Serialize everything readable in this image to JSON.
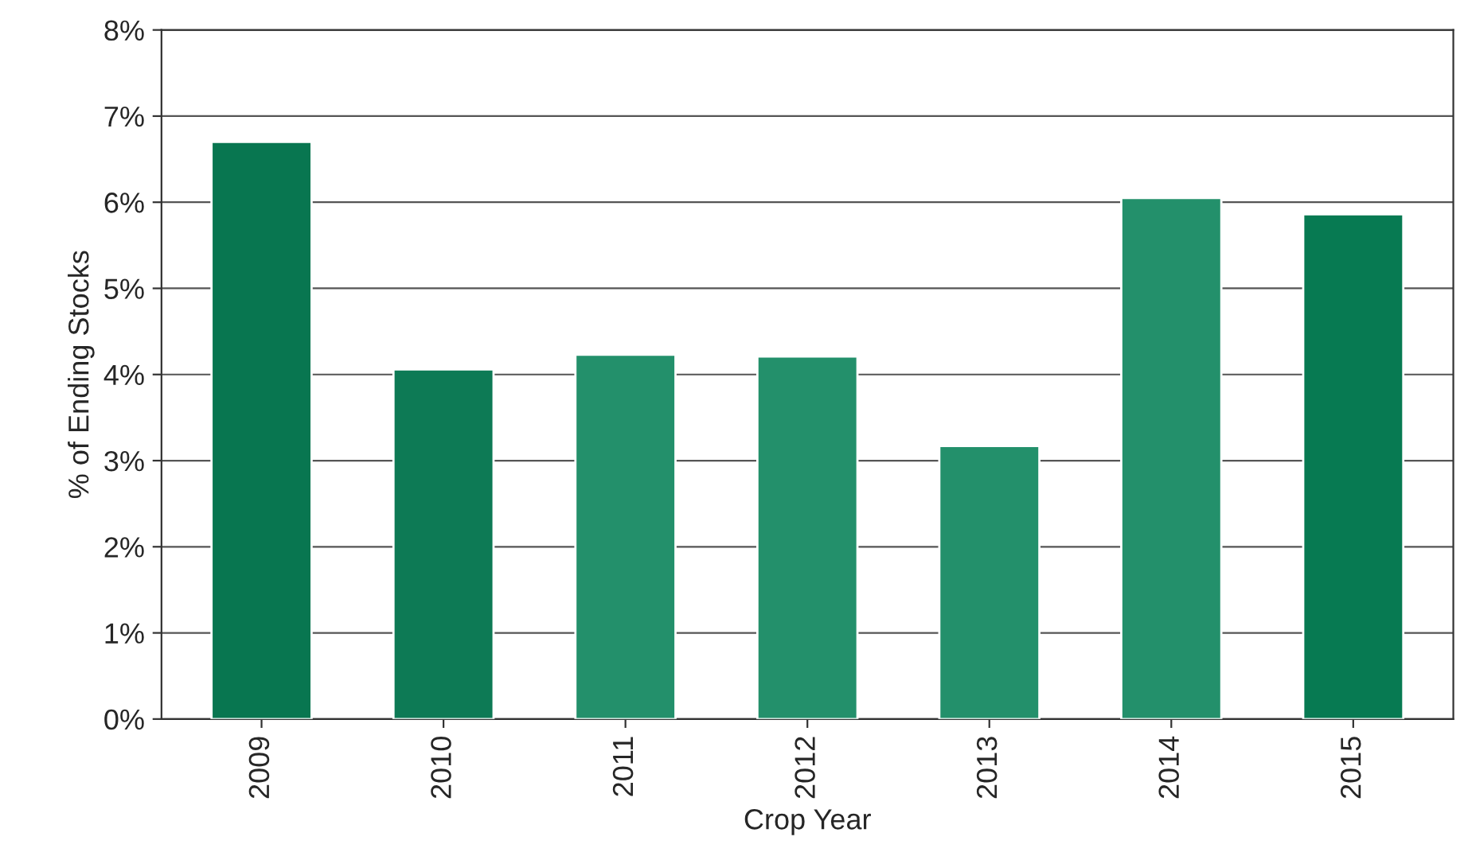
{
  "chart_data": {
    "type": "bar",
    "xlabel": "Crop Year",
    "ylabel": "% of Ending Stocks",
    "categories": [
      "2009",
      "2010",
      "2011",
      "2012",
      "2013",
      "2014",
      "2015"
    ],
    "values": [
      6.7,
      4.06,
      4.23,
      4.21,
      3.17,
      6.05,
      5.86
    ],
    "colors": [
      "#087650",
      "#0d7a55",
      "#23906b",
      "#23906b",
      "#23906b",
      "#23906b",
      "#077a52"
    ],
    "ylim": [
      0,
      8
    ],
    "yticks": [
      {
        "value": 0,
        "label": "0%"
      },
      {
        "value": 1,
        "label": "1%"
      },
      {
        "value": 2,
        "label": "2%"
      },
      {
        "value": 3,
        "label": "3%"
      },
      {
        "value": 4,
        "label": "4%"
      },
      {
        "value": 5,
        "label": "5%"
      },
      {
        "value": 6,
        "label": "6%"
      },
      {
        "value": 7,
        "label": "7%"
      },
      {
        "value": 8,
        "label": "8%"
      }
    ],
    "grid": "y"
  }
}
